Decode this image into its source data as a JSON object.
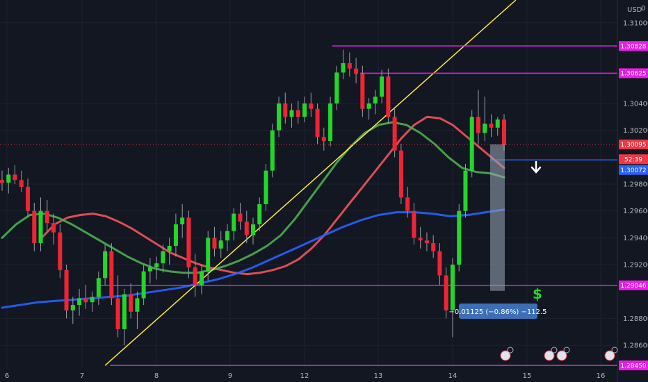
{
  "currency": "USD",
  "axis_zero": "0",
  "chart_data": {
    "type": "candlestick",
    "symbol_currency": "USD",
    "x_ticks": [
      "6",
      "7",
      "8",
      "9",
      "12",
      "13",
      "14",
      "15",
      "16"
    ],
    "y_ticks": [
      "1.31000",
      "1.30400",
      "1.30200",
      "1.29800",
      "1.29600",
      "1.29400",
      "1.29200",
      "1.28800",
      "1.28600"
    ],
    "y_tick_values": [
      1.31,
      1.304,
      1.302,
      1.298,
      1.296,
      1.294,
      1.292,
      1.288,
      1.286
    ],
    "ylim": [
      1.2843,
      1.3117
    ],
    "price_tags": [
      {
        "label": "1.30828",
        "value": 1.30828,
        "bg": "#e91ee9",
        "fg": "#ffffff"
      },
      {
        "label": "1.30625",
        "value": 1.30625,
        "bg": "#e91ee9",
        "fg": "#ffffff"
      },
      {
        "label": "1.30095",
        "value": 1.30095,
        "bg": "#f23645",
        "fg": "#ffffff"
      },
      {
        "label": "52:39",
        "value": 1.29985,
        "bg": "#f23645",
        "fg": "#ffffff"
      },
      {
        "label": "1.30072",
        "value": 1.29905,
        "bg": "#2962ff",
        "fg": "#ffffff"
      },
      {
        "label": "1.29046",
        "value": 1.29046,
        "bg": "#e91ee9",
        "fg": "#ffffff"
      },
      {
        "label": "1.28450",
        "value": 1.2845,
        "bg": "#e91ee9",
        "fg": "#ffffff"
      }
    ],
    "horizontal_levels": [
      {
        "value": 1.30828,
        "color": "#e91ee9"
      },
      {
        "value": 1.30625,
        "color": "#e91ee9"
      },
      {
        "value": 1.29046,
        "color": "#e91ee9"
      },
      {
        "value": 1.2845,
        "color": "#e91ee9"
      }
    ],
    "current_price": 1.30095,
    "measure_label": "−0.01125 (−0.86%) −112.5",
    "candles": [
      [
        1.2983,
        1.299,
        1.2975,
        1.2981
      ],
      [
        1.2981,
        1.2992,
        1.2973,
        1.2987
      ],
      [
        1.2987,
        1.2994,
        1.298,
        1.2983
      ],
      [
        1.2983,
        1.299,
        1.2974,
        1.2978
      ],
      [
        1.2978,
        1.2984,
        1.2955,
        1.296
      ],
      [
        1.296,
        1.2966,
        1.293,
        1.2936
      ],
      [
        1.2936,
        1.297,
        1.293,
        1.296
      ],
      [
        1.296,
        1.2968,
        1.2945,
        1.2951
      ],
      [
        1.2951,
        1.2958,
        1.2935,
        1.2944
      ],
      [
        1.2944,
        1.295,
        1.291,
        1.2916
      ],
      [
        1.2916,
        1.292,
        1.288,
        1.2886
      ],
      [
        1.2886,
        1.2896,
        1.2876,
        1.289
      ],
      [
        1.289,
        1.2902,
        1.2882,
        1.2895
      ],
      [
        1.2895,
        1.2905,
        1.2887,
        1.2892
      ],
      [
        1.2892,
        1.29,
        1.2885,
        1.2896
      ],
      [
        1.2896,
        1.2915,
        1.289,
        1.291
      ],
      [
        1.291,
        1.2935,
        1.2905,
        1.293
      ],
      [
        1.293,
        1.2936,
        1.289,
        1.2895
      ],
      [
        1.2895,
        1.2912,
        1.2866,
        1.2872
      ],
      [
        1.2872,
        1.2902,
        1.286,
        1.2898
      ],
      [
        1.2898,
        1.2906,
        1.288,
        1.2885
      ],
      [
        1.2885,
        1.29,
        1.2872,
        1.2895
      ],
      [
        1.2895,
        1.292,
        1.289,
        1.2915
      ],
      [
        1.2915,
        1.2925,
        1.2906,
        1.2918
      ],
      [
        1.2918,
        1.2926,
        1.2909,
        1.2921
      ],
      [
        1.2921,
        1.2935,
        1.2914,
        1.293
      ],
      [
        1.293,
        1.294,
        1.292,
        1.2934
      ],
      [
        1.2934,
        1.2958,
        1.2926,
        1.295
      ],
      [
        1.295,
        1.2965,
        1.294,
        1.2955
      ],
      [
        1.2955,
        1.296,
        1.291,
        1.2918
      ],
      [
        1.2918,
        1.2928,
        1.2896,
        1.2905
      ],
      [
        1.2905,
        1.292,
        1.2898,
        1.2915
      ],
      [
        1.2915,
        1.2945,
        1.2908,
        1.294
      ],
      [
        1.294,
        1.2948,
        1.2926,
        1.2932
      ],
      [
        1.2932,
        1.2945,
        1.2925,
        1.2938
      ],
      [
        1.2938,
        1.295,
        1.293,
        1.2945
      ],
      [
        1.2945,
        1.2962,
        1.2938,
        1.2958
      ],
      [
        1.2958,
        1.2966,
        1.2946,
        1.2952
      ],
      [
        1.2952,
        1.296,
        1.2936,
        1.2942
      ],
      [
        1.2942,
        1.2955,
        1.2935,
        1.295
      ],
      [
        1.295,
        1.297,
        1.2945,
        1.2965
      ],
      [
        1.2965,
        1.2995,
        1.296,
        1.299
      ],
      [
        1.299,
        1.3025,
        1.2985,
        1.302
      ],
      [
        1.302,
        1.3045,
        1.3015,
        1.304
      ],
      [
        1.304,
        1.3048,
        1.3025,
        1.303
      ],
      [
        1.303,
        1.304,
        1.3022,
        1.3035
      ],
      [
        1.3035,
        1.3042,
        1.3025,
        1.303
      ],
      [
        1.303,
        1.3045,
        1.3026,
        1.304
      ],
      [
        1.304,
        1.3048,
        1.303,
        1.3036
      ],
      [
        1.3036,
        1.304,
        1.301,
        1.3015
      ],
      [
        1.3015,
        1.3022,
        1.3005,
        1.3012
      ],
      [
        1.3012,
        1.3045,
        1.3008,
        1.304
      ],
      [
        1.304,
        1.3068,
        1.3035,
        1.3063
      ],
      [
        1.3063,
        1.308,
        1.3058,
        1.307
      ],
      [
        1.307,
        1.3078,
        1.306,
        1.3066
      ],
      [
        1.3066,
        1.3074,
        1.3055,
        1.3062
      ],
      [
        1.3062,
        1.3068,
        1.303,
        1.3036
      ],
      [
        1.3036,
        1.3044,
        1.3028,
        1.304
      ],
      [
        1.304,
        1.305,
        1.3032,
        1.3045
      ],
      [
        1.3045,
        1.3065,
        1.304,
        1.306
      ],
      [
        1.306,
        1.3066,
        1.3025,
        1.303
      ],
      [
        1.303,
        1.3036,
        1.3,
        1.3005
      ],
      [
        1.3005,
        1.301,
        1.2965,
        1.297
      ],
      [
        1.297,
        1.2978,
        1.2955,
        1.296
      ],
      [
        1.296,
        1.2966,
        1.2935,
        1.294
      ],
      [
        1.294,
        1.2948,
        1.2932,
        1.2938
      ],
      [
        1.2938,
        1.2944,
        1.293,
        1.2936
      ],
      [
        1.2936,
        1.2942,
        1.2925,
        1.293
      ],
      [
        1.293,
        1.2936,
        1.2905,
        1.2912
      ],
      [
        1.2912,
        1.2918,
        1.288,
        1.2886
      ],
      [
        1.2886,
        1.2925,
        1.2866,
        1.292
      ],
      [
        1.292,
        1.2965,
        1.2915,
        1.296
      ],
      [
        1.296,
        1.2995,
        1.2955,
        1.299
      ],
      [
        1.299,
        1.3035,
        1.2985,
        1.303
      ],
      [
        1.303,
        1.305,
        1.301,
        1.3018
      ],
      [
        1.3018,
        1.3045,
        1.3012,
        1.3025
      ],
      [
        1.3025,
        1.3032,
        1.3015,
        1.3022
      ],
      [
        1.3022,
        1.303,
        1.3016,
        1.3028
      ],
      [
        1.3028,
        1.3032,
        1.3005,
        1.3009
      ]
    ],
    "moving_averages": [
      {
        "color": "#f2545b",
        "values": [
          1.294,
          1.295,
          1.2955,
          1.2957,
          1.2958,
          1.2956,
          1.2952,
          1.2947,
          1.2941,
          1.2935,
          1.2929,
          1.2925,
          1.2921,
          1.2918,
          1.2916,
          1.2914,
          1.2913,
          1.2914,
          1.2916,
          1.2919,
          1.2924,
          1.2932,
          1.2942,
          1.2954,
          1.2966,
          1.2978,
          1.299,
          1.3002,
          1.3014,
          1.3024,
          1.303,
          1.3029,
          1.3024,
          1.3016,
          1.3008,
          1.3,
          1.2992
        ]
      },
      {
        "color": "#4caf50",
        "values": [
          1.294,
          1.295,
          1.2957,
          1.2958,
          1.2955,
          1.295,
          1.2944,
          1.2938,
          1.2932,
          1.2926,
          1.2921,
          1.2917,
          1.2915,
          1.2914,
          1.2914,
          1.2916,
          1.2919,
          1.2923,
          1.2928,
          1.2934,
          1.2942,
          1.2954,
          1.2968,
          1.2982,
          1.2996,
          1.3008,
          1.3018,
          1.3024,
          1.3026,
          1.3024,
          1.3018,
          1.301,
          1.3,
          1.2992,
          1.2989,
          1.2988,
          1.2985
        ]
      },
      {
        "color": "#2962ff",
        "values": [
          1.2888,
          1.289,
          1.2892,
          1.2893,
          1.2894,
          1.2895,
          1.2896,
          1.2897,
          1.2899,
          1.2901,
          1.2903,
          1.2906,
          1.2909,
          1.2913,
          1.2918,
          1.2924,
          1.293,
          1.2936,
          1.2942,
          1.2948,
          1.2953,
          1.2957,
          1.2959,
          1.2959,
          1.2958,
          1.2956,
          1.2957,
          1.2959,
          1.2961
        ]
      }
    ],
    "trendline": {
      "color": "#ffeb3b",
      "from_candle": 16,
      "from_value": 1.2845,
      "to_candle": 80,
      "to_value": 1.312
    },
    "grid": true
  }
}
